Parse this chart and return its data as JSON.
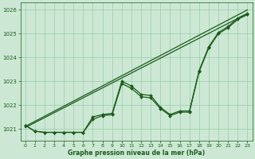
{
  "bg_color": "#cce8d4",
  "grid_color": "#99ccaa",
  "line_color": "#1a5c1a",
  "text_color": "#1a5c1a",
  "xlabel": "Graphe pression niveau de la mer (hPa)",
  "ylim": [
    1020.5,
    1026.3
  ],
  "xlim": [
    -0.5,
    23.5
  ],
  "yticks": [
    1021,
    1022,
    1023,
    1024,
    1025,
    1026
  ],
  "xticks": [
    0,
    1,
    2,
    3,
    4,
    5,
    6,
    7,
    8,
    9,
    10,
    11,
    12,
    13,
    14,
    15,
    16,
    17,
    18,
    19,
    20,
    21,
    22,
    23
  ],
  "series1": [
    1021.15,
    1020.9,
    1020.85,
    1020.85,
    1020.85,
    1020.85,
    1020.85,
    1021.5,
    1021.6,
    1021.65,
    1023.0,
    1022.8,
    1022.45,
    1022.4,
    1021.9,
    1021.6,
    1021.75,
    1021.75,
    1023.45,
    1024.45,
    1025.05,
    1025.3,
    1025.65,
    1025.85
  ],
  "series2": [
    1021.15,
    1020.9,
    1020.85,
    1020.85,
    1020.85,
    1020.85,
    1020.85,
    1021.4,
    1021.55,
    1021.6,
    1022.9,
    1022.7,
    1022.35,
    1022.3,
    1021.85,
    1021.55,
    1021.7,
    1021.7,
    1023.4,
    1024.4,
    1025.0,
    1025.25,
    1025.6,
    1025.8
  ],
  "trend1_x": [
    0,
    23
  ],
  "trend1_y": [
    1021.05,
    1025.85
  ],
  "trend2_x": [
    0,
    23
  ],
  "trend2_y": [
    1021.1,
    1026.0
  ]
}
